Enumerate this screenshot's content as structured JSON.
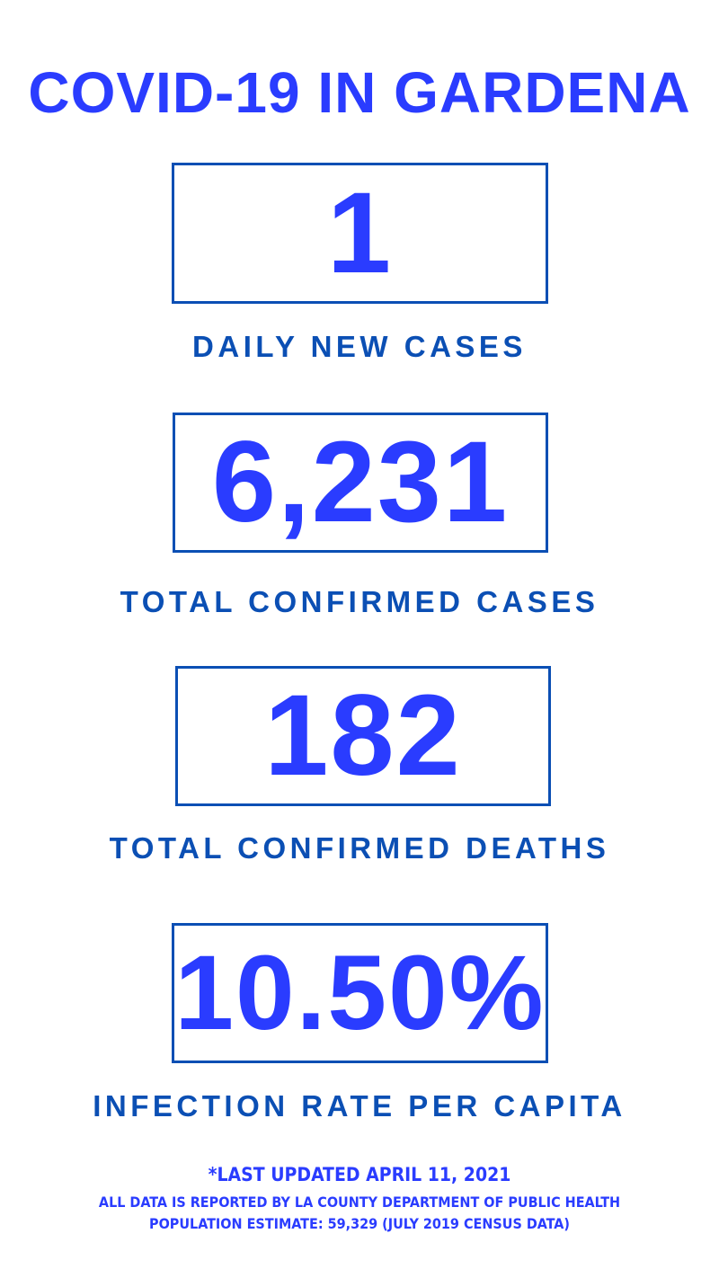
{
  "title": "COVID-19 IN GARDENA",
  "stats": [
    {
      "value": "1",
      "label": "DAILY NEW CASES"
    },
    {
      "value": "6,231",
      "label": "TOTAL CONFIRMED CASES"
    },
    {
      "value": "182",
      "label": "TOTAL CONFIRMED DEATHS"
    },
    {
      "value": "10.50%",
      "label": "INFECTION RATE PER CAPITA"
    }
  ],
  "footer": {
    "updated": "*LAST UPDATED APRIL 11, 2021",
    "source": "ALL DATA IS REPORTED BY LA COUNTY DEPARTMENT OF PUBLIC HEALTH",
    "population": "POPULATION ESTIMATE: 59,329 (JULY 2019 CENSUS DATA)"
  },
  "colors": {
    "number": "#2a3cff",
    "border_label": "#0b4fb4"
  }
}
